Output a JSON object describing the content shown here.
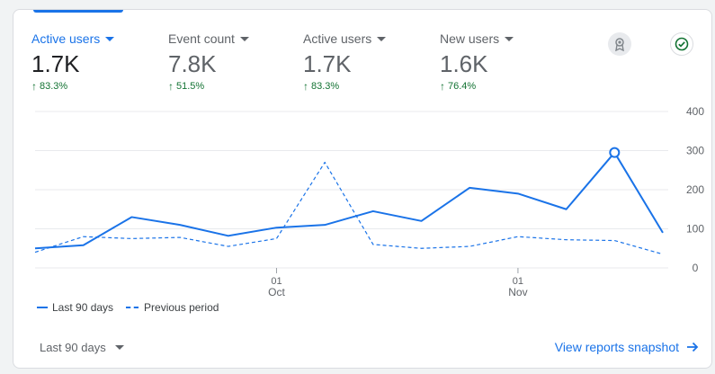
{
  "metrics": [
    {
      "label": "Active users",
      "value": "1.7K",
      "change": "83.3%",
      "active": true
    },
    {
      "label": "Event count",
      "value": "7.8K",
      "change": "51.5%",
      "active": false
    },
    {
      "label": "Active users",
      "value": "1.7K",
      "change": "83.3%",
      "active": false
    },
    {
      "label": "New users",
      "value": "1.6K",
      "change": "76.4%",
      "active": false
    }
  ],
  "icons": {
    "insights": "award-icon",
    "status": "check-circle-icon"
  },
  "colors": {
    "accent": "#1a73e8",
    "positive": "#137333",
    "grid": "#e8eaed",
    "axis_text": "#5f6368"
  },
  "chart_data": {
    "type": "line",
    "ylim": [
      0,
      400
    ],
    "yticks": [
      "400",
      "300",
      "200",
      "100",
      "0"
    ],
    "xticks": [
      {
        "day": "01",
        "month": "Oct",
        "index": 5
      },
      {
        "day": "01",
        "month": "Nov",
        "index": 10
      }
    ],
    "series": [
      {
        "name": "Last 90 days",
        "style": "solid",
        "values": [
          50,
          58,
          130,
          110,
          82,
          103,
          110,
          145,
          120,
          205,
          190,
          150,
          295,
          90
        ]
      },
      {
        "name": "Previous period",
        "style": "dashed",
        "values": [
          40,
          80,
          75,
          78,
          55,
          75,
          270,
          60,
          50,
          55,
          80,
          72,
          70,
          35
        ]
      }
    ],
    "highlight_index": 12
  },
  "footer": {
    "period_label": "Last 90 days",
    "link_label": "View reports snapshot",
    "link_icon": "arrow-right-icon"
  }
}
